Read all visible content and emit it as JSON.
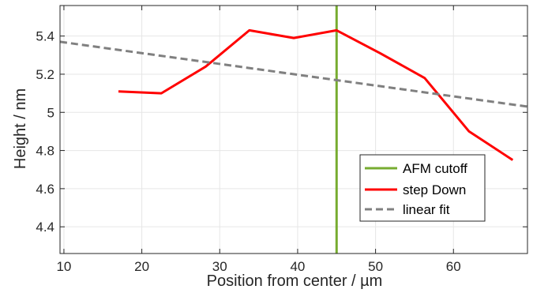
{
  "chart_data": {
    "type": "line",
    "xlabel": "Position from center / µm",
    "ylabel": "Height / nm",
    "xlim": [
      9.5,
      69.5
    ],
    "ylim": [
      4.26,
      5.56
    ],
    "xticks": [
      10,
      20,
      30,
      40,
      50,
      60
    ],
    "yticks": [
      4.4,
      4.6,
      4.8,
      5,
      5.2,
      5.4
    ],
    "xtick_labels": [
      "10",
      "20",
      "30",
      "40",
      "50",
      "60"
    ],
    "ytick_labels": [
      "4.4",
      "4.6",
      "4.8",
      "5",
      "5.2",
      "5.4"
    ],
    "grid": true,
    "legend_position": "bottom-right",
    "series": [
      {
        "name": "AFM cutoff",
        "kind": "vertical-line",
        "color": "#77ac30",
        "x": 45
      },
      {
        "name": "step Down",
        "kind": "line",
        "color": "#ff0000",
        "x": [
          17,
          22.5,
          28.2,
          33.8,
          39.5,
          45,
          50.6,
          56.3,
          62,
          67.6
        ],
        "y": [
          5.11,
          5.1,
          5.24,
          5.43,
          5.39,
          5.43,
          5.31,
          5.18,
          4.9,
          4.75
        ]
      },
      {
        "name": "linear fit",
        "kind": "dashed-line",
        "color": "#808080",
        "x": [
          9.5,
          69.5
        ],
        "y": [
          5.37,
          5.03
        ]
      }
    ]
  }
}
